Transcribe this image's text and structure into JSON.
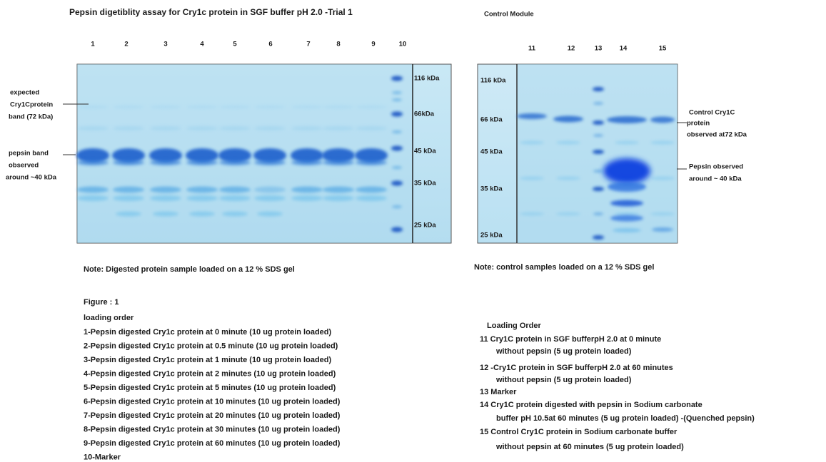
{
  "left_panel": {
    "title": "Pepsin digetiblity assay for Cry1c protein in SGF buffer pH 2.0 -Trial 1",
    "lane_numbers": [
      "1",
      "2",
      "3",
      "4",
      "5",
      "6",
      "7",
      "8",
      "9",
      "10"
    ],
    "marker_labels": [
      "116 kDa",
      "66kDa",
      "45 kDa",
      "35 kDa",
      "25 kDa"
    ],
    "annotations": {
      "expected_band": [
        "expected",
        "Cry1Cprotein",
        "band (72 kDa)"
      ],
      "pepsin_band": [
        "pepsin band",
        "observed",
        "around ~40 kDa"
      ]
    },
    "note": "Note: Digested protein sample loaded on a 12 % SDS gel"
  },
  "right_panel": {
    "title": "Control Module",
    "lane_numbers": [
      "11",
      "12",
      "13",
      "14",
      "15"
    ],
    "marker_labels": [
      "116 kDa",
      "66 kDa",
      "45 kDa",
      "35 kDa",
      "25 kDa"
    ],
    "annotations": {
      "control_band": [
        "Control Cry1C",
        "protein",
        "observed at72 kDa"
      ],
      "pepsin_band": [
        "Pepsin observed",
        "around ~ 40 kDa"
      ]
    },
    "note": "Note: control samples loaded on a 12 % SDS gel"
  },
  "figure": {
    "label": "Figure : 1",
    "heading": "loading order",
    "items": [
      "1-Pepsin digested Cry1c protein at 0 minute (10 ug protein loaded)",
      "2-Pepsin digested Cry1c protein at 0.5 minute (10 ug protein loaded)",
      "3-Pepsin digested Cry1c protein at 1 minute (10 ug protein loaded)",
      "4-Pepsin digested Cry1c protein at 2 minutes (10 ug protein loaded)",
      "5-Pepsin digested Cry1c protein at 5 minutes (10 ug protein loaded)",
      "6-Pepsin digested Cry1c protein at 10 minutes (10 ug protein loaded)",
      "7-Pepsin digested Cry1c protein at 20 minutes (10 ug protein loaded)",
      "8-Pepsin digested Cry1c protein at 30 minutes (10 ug protein loaded)",
      "9-Pepsin digested Cry1c protein at 60 minutes (10 ug protein loaded)",
      "10-Marker"
    ]
  },
  "control_legend": {
    "heading": "Loading Order",
    "lines": [
      "11 Cry1C protein in SGF bufferpH 2.0 at 0 minute",
      "without pepsin (5 ug protein loaded)",
      "12 -Cry1C protein in SGF bufferpH 2.0 at 60 minutes",
      "without pepsin (5 ug protein loaded)",
      "13 Marker",
      "14 Cry1C protein digested with pepsin in Sodium carbonate",
      "buffer pH 10.5at 60 minutes (5 ug protein loaded) -(Quenched pepsin)",
      "15 Control Cry1C protein in Sodium carbonate buffer",
      "without pepsin at 60 minutes (5 ug protein loaded)"
    ]
  }
}
